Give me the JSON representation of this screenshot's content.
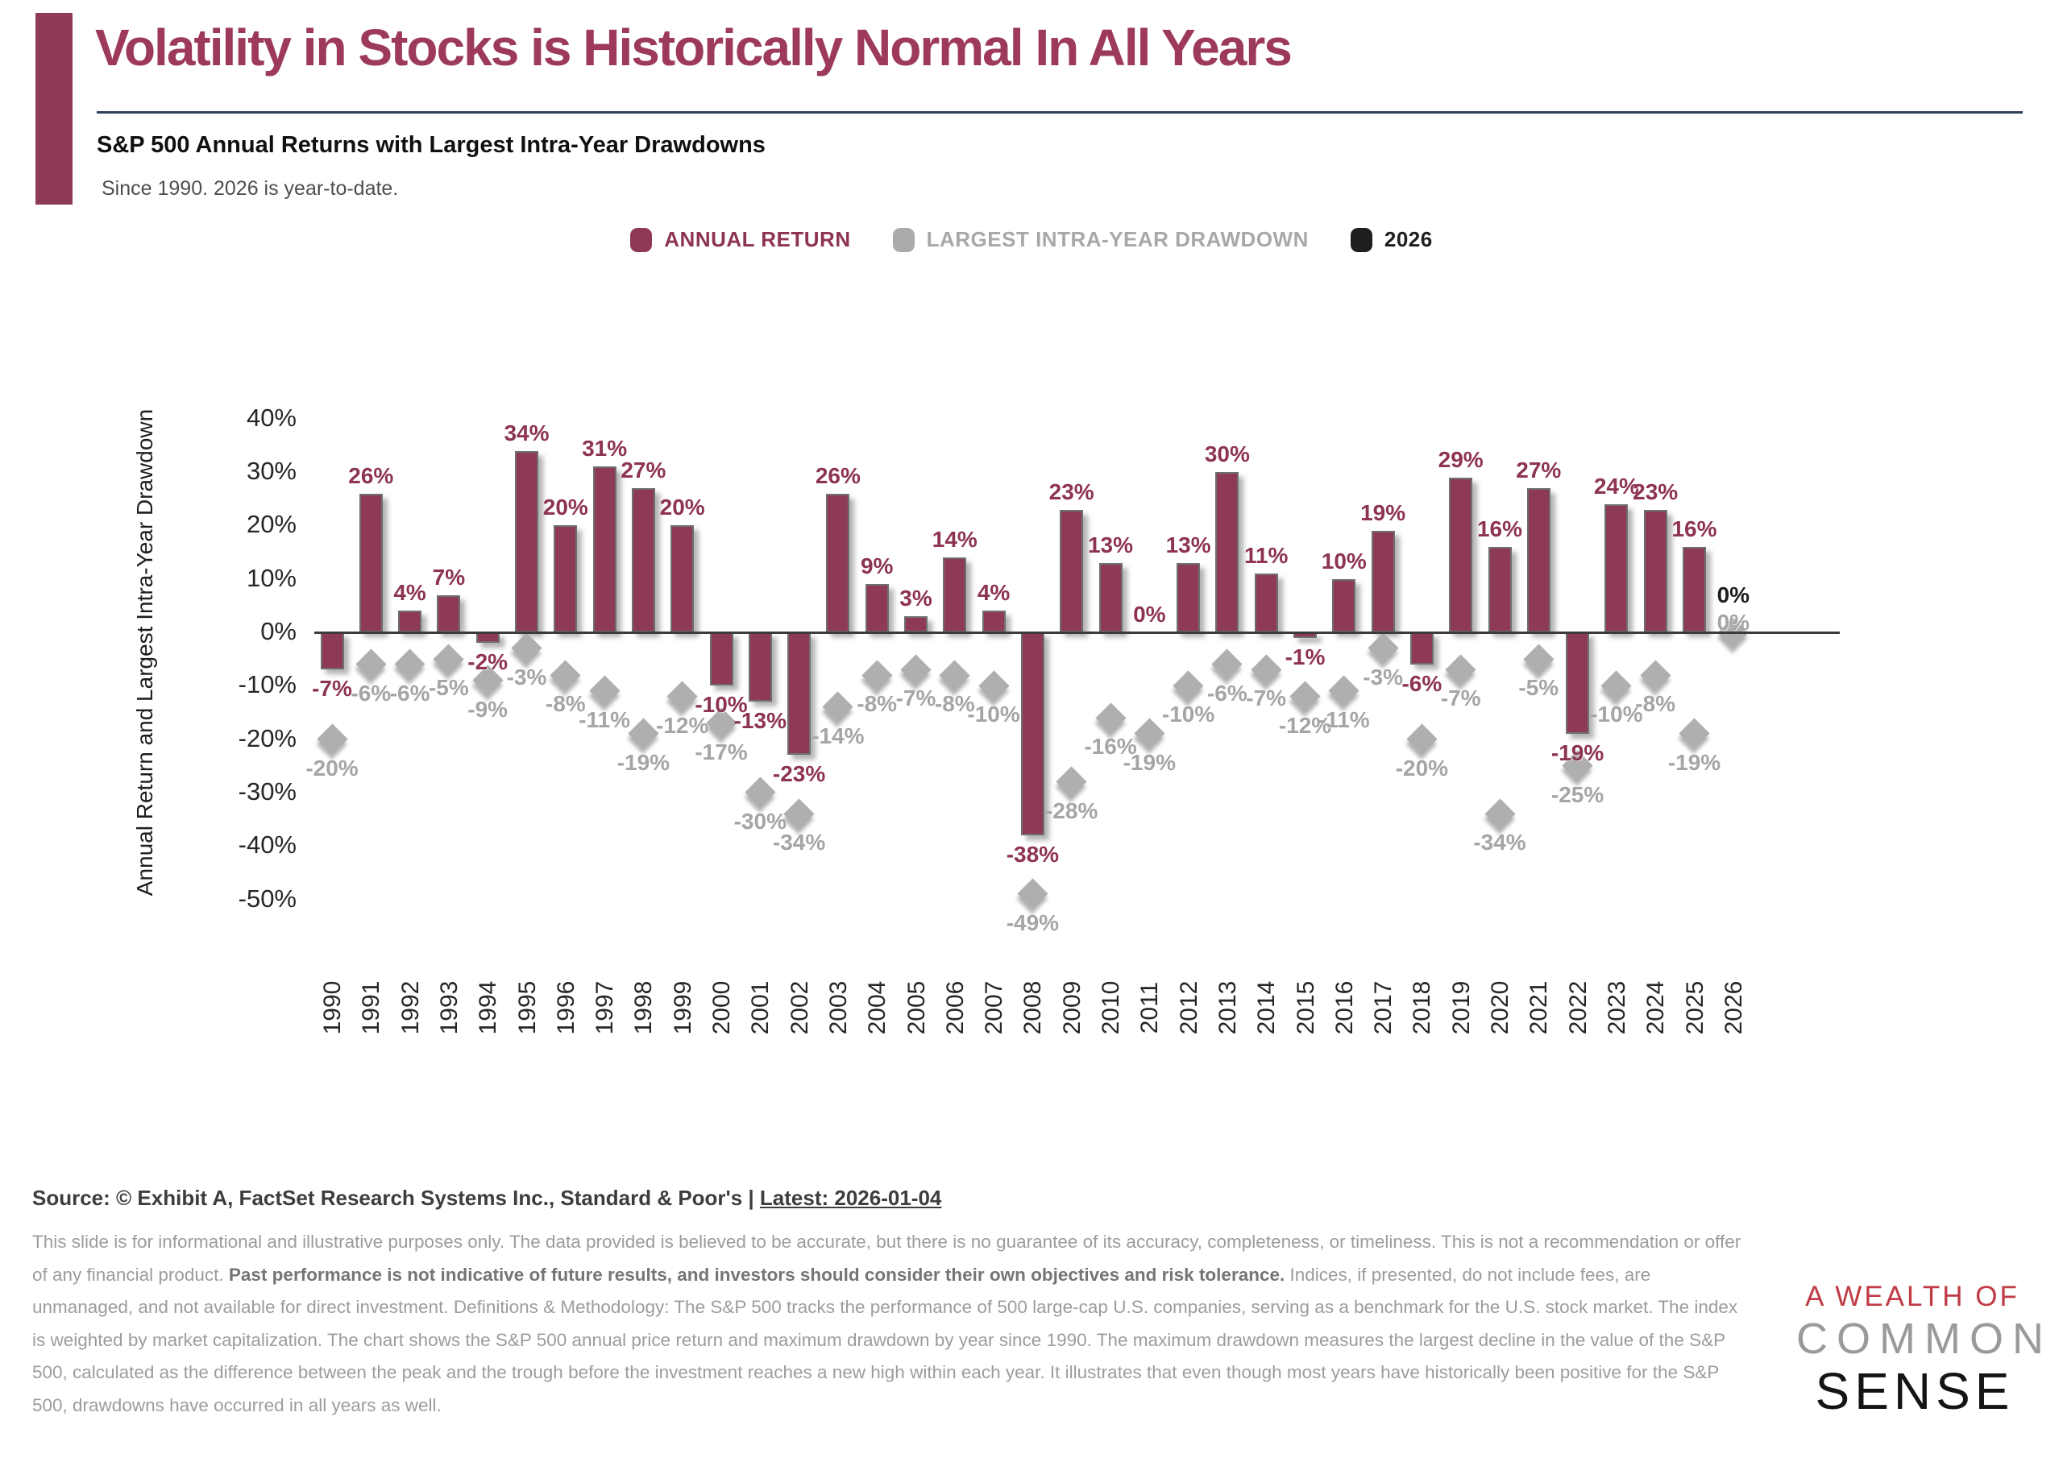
{
  "header": {
    "title": "Volatility in Stocks is Historically Normal In All Years",
    "subtitle": "S&P 500 Annual Returns with Largest Intra-Year Drawdowns",
    "tagline": "Since 1990. 2026 is year-to-date."
  },
  "legend": [
    {
      "label": "ANNUAL RETURN",
      "color": "#8E3A57",
      "text_color": "#8D3353"
    },
    {
      "label": "LARGEST INTRA-YEAR DRAWDOWN",
      "color": "#ABABAB",
      "text_color": "#A8A8A8"
    },
    {
      "label": "2026",
      "color": "#1E1E1E",
      "text_color": "#1E1E1E"
    }
  ],
  "chart_data": {
    "type": "bar",
    "title": "S&P 500 Annual Returns with Largest Intra-Year Drawdowns",
    "xlabel": "",
    "ylabel": "Annual Return and Largest Intra-Year Drawdown",
    "ylim": [
      -55,
      45
    ],
    "yticks": [
      40,
      30,
      20,
      10,
      0,
      -10,
      -20,
      -30,
      -40,
      -50
    ],
    "grid": "off",
    "legend_position": "top",
    "categories": [
      1990,
      1991,
      1992,
      1993,
      1994,
      1995,
      1996,
      1997,
      1998,
      1999,
      2000,
      2001,
      2002,
      2003,
      2004,
      2005,
      2006,
      2007,
      2008,
      2009,
      2010,
      2011,
      2012,
      2013,
      2014,
      2015,
      2016,
      2017,
      2018,
      2019,
      2020,
      2021,
      2022,
      2023,
      2024,
      2025,
      2026
    ],
    "series": [
      {
        "name": "ANNUAL RETURN",
        "type": "bar",
        "color": "#8E3A57",
        "values": [
          -7,
          26,
          4,
          7,
          -2,
          34,
          20,
          31,
          27,
          20,
          -10,
          -13,
          -23,
          26,
          9,
          3,
          14,
          4,
          -38,
          23,
          13,
          0,
          13,
          30,
          11,
          -1,
          10,
          19,
          -6,
          29,
          16,
          27,
          -19,
          24,
          23,
          16,
          0
        ]
      },
      {
        "name": "LARGEST INTRA-YEAR DRAWDOWN",
        "type": "scatter",
        "marker": "diamond",
        "color": "#ABABAB",
        "values": [
          -20,
          -6,
          -6,
          -5,
          -9,
          -3,
          -8,
          -11,
          -19,
          -12,
          -17,
          -30,
          -34,
          -14,
          -8,
          -7,
          -8,
          -10,
          -49,
          -28,
          -16,
          -19,
          -10,
          -6,
          -7,
          -12,
          -11,
          -3,
          -20,
          -7,
          -34,
          -5,
          -25,
          -10,
          -8,
          -19,
          0
        ]
      }
    ],
    "special_year": {
      "year": 2026,
      "label_color": "#1E1E1E",
      "note": "year-to-date"
    }
  },
  "footer": {
    "source_prefix": "Source: © Exhibit A, FactSet Research Systems Inc., Standard & Poor's | ",
    "source_link": "Latest: 2026-01-04",
    "disclaimer_1": "This slide is for informational and illustrative purposes only. The data provided is believed to be accurate, but there is no guarantee of its accuracy, completeness, or timeliness. This is not a recommendation or offer of any financial product. ",
    "disclaimer_bold": "Past performance is not indicative of future results, and investors should consider their own objectives and risk tolerance.",
    "disclaimer_2": " Indices, if presented, do not include fees, are unmanaged, and not available for direct investment. Definitions & Methodology: The S&P 500 tracks the performance of 500 large-cap U.S. companies, serving as a benchmark for the U.S. stock market. The index is weighted by market capitalization. The chart shows the S&P 500 annual price return and maximum drawdown by year since 1990. The maximum drawdown measures the largest decline in the value of the S&P 500, calculated as the difference between the peak and the trough before the investment reaches a new high within each year. It illustrates that even though most years have historically been positive for the S&P 500, drawdowns have occurred in all years as well.",
    "logo_line1": "A WEALTH OF",
    "logo_line2": "COMMON",
    "logo_line3": "SENSE"
  }
}
